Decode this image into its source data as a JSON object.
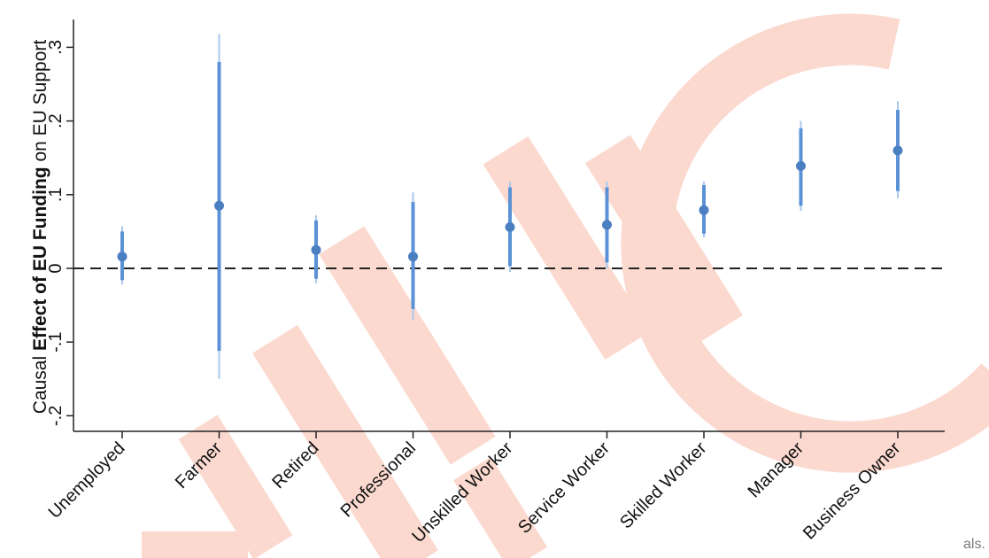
{
  "chart_data": {
    "type": "scatter",
    "ylabel_parts": [
      {
        "text": "Causal ",
        "bold": false
      },
      {
        "text": "Effect of EU Funding",
        "bold": true
      },
      {
        "text": " on EU Support",
        "bold": false
      }
    ],
    "ylim": [
      -0.22,
      0.33
    ],
    "yticks": [
      -0.2,
      -0.1,
      0,
      0.1,
      0.2,
      0.3
    ],
    "ytick_labels": [
      "-.2",
      "-.1",
      "0",
      ".1",
      ".2",
      ".3"
    ],
    "reference_line": 0,
    "categories": [
      "Unemployed",
      "Farmer",
      "Retired",
      "Professional",
      "Unskilled Worker",
      "Service Worker",
      "Skilled Worker",
      "Manager",
      "Business Owner"
    ],
    "estimates": [
      0.016,
      0.085,
      0.025,
      0.016,
      0.056,
      0.059,
      0.079,
      0.139,
      0.16
    ],
    "ci_inner": [
      [
        -0.016,
        0.05
      ],
      [
        -0.112,
        0.28
      ],
      [
        -0.014,
        0.065
      ],
      [
        -0.055,
        0.09
      ],
      [
        0.003,
        0.11
      ],
      [
        0.008,
        0.11
      ],
      [
        0.047,
        0.113
      ],
      [
        0.085,
        0.19
      ],
      [
        0.105,
        0.215
      ]
    ],
    "ci_outer": [
      [
        -0.022,
        0.057
      ],
      [
        -0.15,
        0.318
      ],
      [
        -0.02,
        0.072
      ],
      [
        -0.07,
        0.103
      ],
      [
        -0.005,
        0.118
      ],
      [
        0.0,
        0.118
      ],
      [
        0.042,
        0.118
      ],
      [
        0.078,
        0.2
      ],
      [
        0.095,
        0.227
      ]
    ],
    "marker_color": "#4a7fc1",
    "ci_color": "#5b92d6",
    "ci_outer_color": "#a9c8ec",
    "grid": false
  },
  "watermark": {
    "color": "#fbd9cf"
  },
  "footer_fragment": "als."
}
